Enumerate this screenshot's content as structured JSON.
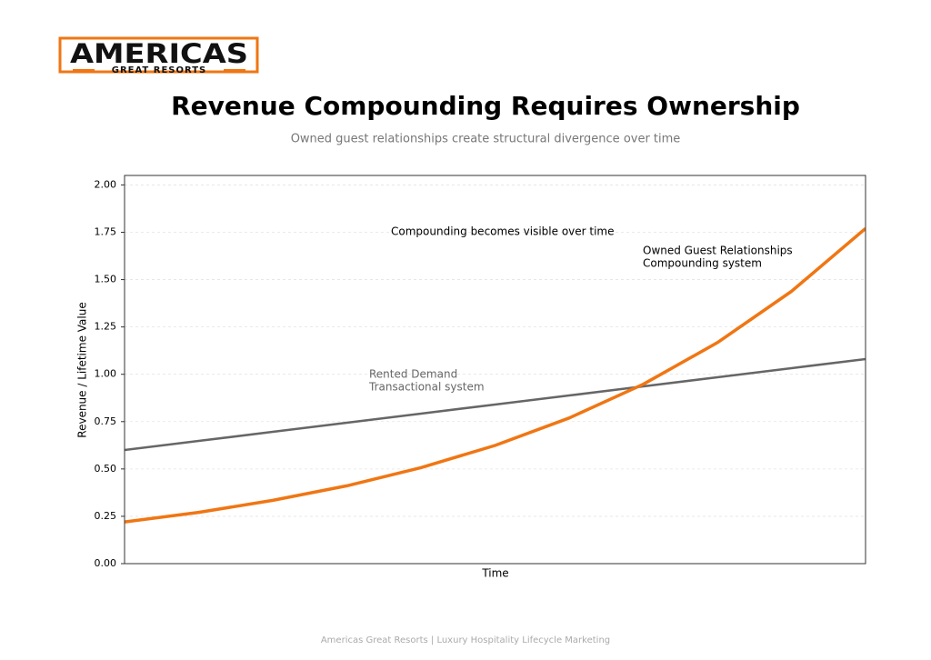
{
  "logo": {
    "name": "AMERICAS",
    "tagline": "GREAT RESORTS"
  },
  "chart_data": {
    "type": "line",
    "title": "Revenue Compounding Requires Ownership",
    "subtitle": "Owned guest relationships create structural divergence over time",
    "x_label": "Time",
    "y_label": "Revenue / Lifetime Value",
    "x": [
      0,
      1,
      2,
      3,
      4,
      5,
      6,
      7,
      8,
      9,
      10
    ],
    "xlim": [
      0,
      10
    ],
    "series": [
      {
        "color": "#666666",
        "values": [
          0.6,
          0.648,
          0.696,
          0.744,
          0.792,
          0.84,
          0.888,
          0.936,
          0.984,
          1.032,
          1.08
        ]
      },
      {
        "color": "#f07613",
        "values": [
          0.22,
          0.271,
          0.334,
          0.411,
          0.507,
          0.624,
          0.769,
          0.947,
          1.167,
          1.438,
          1.77
        ]
      }
    ],
    "ylim": [
      0,
      2.05
    ],
    "yticks": [
      {
        "value": 0,
        "label": "0.00"
      },
      0.25,
      {
        "value": 0.5,
        "label": "0.50"
      },
      0.75,
      {
        "value": 1,
        "label": "1.00"
      },
      1.25,
      {
        "value": 1.5,
        "label": "1.50"
      },
      1.75,
      {
        "value": 2,
        "label": "2.00"
      }
    ],
    "grid": true,
    "annotations": [
      "Compounding becomes visible over time",
      "Owned Guest Relationships",
      "Compounding system",
      "Rented Demand",
      "Transactional system"
    ]
  },
  "footer": "Americas Great Resorts | Luxury Hospitality Lifecycle Marketing"
}
